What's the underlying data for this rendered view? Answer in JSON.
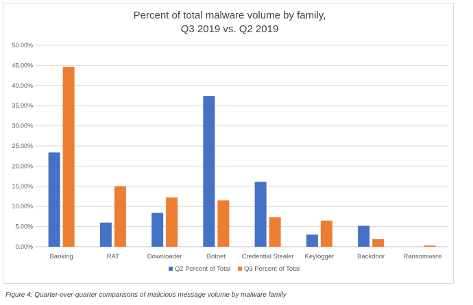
{
  "chart_data": {
    "type": "bar",
    "title_lines": [
      "Percent of total malware volume by family,",
      "Q3 2019 vs. Q2 2019"
    ],
    "categories": [
      "Banking",
      "RAT",
      "Downloader",
      "Botnet",
      "Credential Stealer",
      "Keylogger",
      "Backdoor",
      "Ransomware"
    ],
    "series": [
      {
        "name": "Q2 Percent of Total",
        "color": "#4472C4",
        "values": [
          23.4,
          6.0,
          8.4,
          37.4,
          16.1,
          3.0,
          5.2,
          0.0
        ]
      },
      {
        "name": "Q3 Percent of Total",
        "color": "#ED7D31",
        "values": [
          44.6,
          15.0,
          12.2,
          11.5,
          7.3,
          6.5,
          1.9,
          0.3
        ]
      }
    ],
    "y_ticks": [
      "0.00%",
      "5.00%",
      "10.00%",
      "15.00%",
      "20.00%",
      "25.00%",
      "30.00%",
      "35.00%",
      "40.00%",
      "45.00%",
      "50.00%"
    ],
    "ylim": [
      0,
      50
    ],
    "grid": true,
    "legend_position": "bottom"
  },
  "caption": "Figure 4: Quarter-over-quarter comparisons of malicious message volume by malware family"
}
